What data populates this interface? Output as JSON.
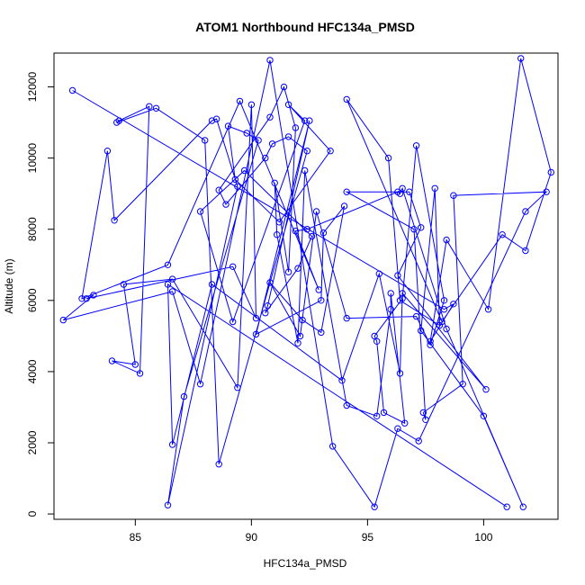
{
  "chart_data": {
    "type": "line",
    "title": "ATOM1 Northbound HFC134a_PMSD",
    "xlabel": "HFC134a_PMSD",
    "ylabel": "Altitude (m)",
    "xlim": [
      81.5,
      103.2
    ],
    "ylim": [
      -150,
      12950
    ],
    "xticks": [
      85,
      90,
      95,
      100
    ],
    "yticks": [
      0,
      2000,
      4000,
      6000,
      8000,
      10000,
      12000
    ],
    "grid": false,
    "legend": "none",
    "colors": {
      "series": "#0000ff",
      "axes": "#000000"
    },
    "series": [
      {
        "marker": "open-circle",
        "x": [
          82.3,
          98.3,
          98.7,
          97.7,
          98.4,
          100.2,
          101.6,
          102.9,
          101.8,
          100.8,
          98.2,
          94.1,
          95.9,
          96.4,
          98.1,
          97.9,
          97.3,
          100.0,
          101.7,
          98.4,
          96.5,
          96.4,
          96.3,
          92.4,
          91.9,
          92.9,
          89.5,
          86.4,
          82.7,
          83.8,
          84.1,
          88.3,
          88.5,
          89.4,
          86.4,
          87.1,
          90.3,
          89.8,
          89.0,
          89.3,
          91.2,
          93.4,
          91.6,
          92.3,
          89.2,
          87.8,
          89.7,
          92.6,
          92.0,
          90.6,
          90.7,
          92.5,
          90.2,
          93.0,
          93.1,
          94.0,
          93.0,
          92.2,
          90.8,
          92.1,
          92.8,
          94.1,
          97.1,
          97.7,
          98.3,
          97.1,
          96.5,
          95.3,
          95.4,
          95.7,
          96.6,
          96.0,
          96.0,
          95.4,
          94.1,
          92.3,
          92.0,
          91.1,
          91.0,
          91.6,
          91.9,
          91.4,
          90.8,
          88.6,
          88.9,
          90.6,
          90.9,
          91.6,
          92.4,
          88.6,
          88.0,
          85.9,
          84.2,
          84.3,
          85.6,
          85.2,
          84.0,
          85.0,
          84.5,
          86.6,
          89.4,
          90.0,
          90.2,
          89.2,
          82.9,
          83.2,
          81.9,
          86.6,
          87.8,
          90.8,
          93.5,
          95.3,
          96.3,
          97.2,
          101.8,
          102.7,
          98.7,
          99.1,
          97.4,
          97.5,
          97.0,
          94.1,
          96.8,
          97.3,
          96.3,
          100.1,
          96.5,
          96.4,
          95.5,
          93.9,
          88.3,
          86.6,
          86.4,
          101.0
        ],
        "y": [
          11900,
          5750,
          5900,
          4850,
          7700,
          5750,
          12800,
          9600,
          7400,
          7850,
          5400,
          11650,
          10000,
          6000,
          5300,
          9150,
          5150,
          2750,
          200,
          5200,
          9150,
          9000,
          9050,
          8000,
          7950,
          6300,
          11600,
          7000,
          6050,
          10200,
          8250,
          11050,
          11100,
          9200,
          250,
          3300,
          10500,
          10700,
          10900,
          9400,
          8200,
          10200,
          11500,
          11050,
          5400,
          8500,
          9650,
          7800,
          6900,
          5650,
          5850,
          11050,
          5050,
          6000,
          7900,
          8650,
          5100,
          5450,
          6500,
          5000,
          8500,
          5500,
          5550,
          4750,
          6000,
          10350,
          6050,
          5000,
          4850,
          2850,
          2550,
          6200,
          5750,
          2750,
          3050,
          9650,
          4800,
          7850,
          9300,
          6800,
          10850,
          12000,
          11150,
          9100,
          8700,
          10000,
          10400,
          10600,
          10200,
          1400,
          10500,
          11400,
          11000,
          11050,
          11450,
          3950,
          4300,
          4200,
          6450,
          6600,
          3550,
          11500,
          5500,
          6950,
          6050,
          6150,
          5450,
          6250,
          3650,
          12750,
          1900,
          200,
          2400,
          2050,
          8500,
          9050,
          8950,
          3650,
          2850,
          2650,
          8000,
          9050,
          9050,
          8050,
          6700,
          3500,
          6200,
          3950,
          6750,
          3750,
          6450,
          1950,
          6450,
          200
        ]
      }
    ]
  }
}
